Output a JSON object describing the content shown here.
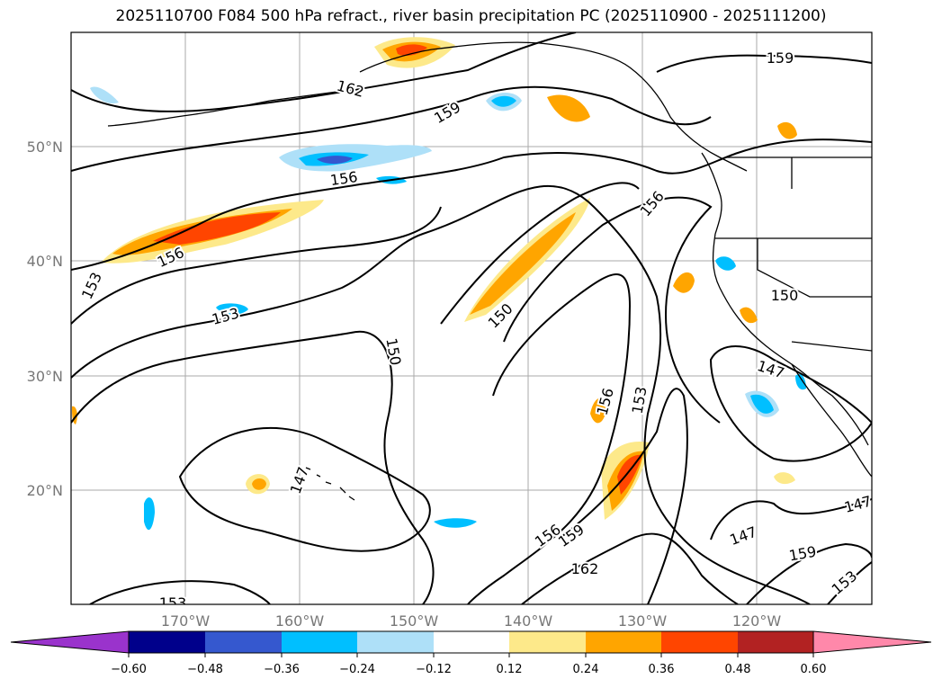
{
  "title": "2025110700 F084 500 hPa refract., river basin precipitation PC (2025110900 - 2025111200)",
  "map": {
    "lat_labels": [
      "50°N",
      "40°N",
      "30°N",
      "20°N"
    ],
    "lon_labels": [
      "170°W",
      "160°W",
      "150°W",
      "140°W",
      "130°W",
      "120°W"
    ],
    "contour_labels": [
      "162",
      "159",
      "159",
      "156",
      "156",
      "156",
      "153",
      "153",
      "150",
      "150",
      "150",
      "147",
      "147",
      "147",
      "156",
      "153",
      "156",
      "159",
      "162",
      "147",
      "159",
      "153",
      "153"
    ]
  },
  "colorbar": {
    "ticks": [
      "−0.60",
      "−0.48",
      "−0.36",
      "−0.24",
      "−0.12",
      "0.12",
      "0.24",
      "0.36",
      "0.48",
      "0.60"
    ],
    "colors": [
      "#9a33cc",
      "#00008b",
      "#3558cf",
      "#00bfff",
      "#aee0f8",
      "#ffffff",
      "#fde98a",
      "#ffa500",
      "#ff4500",
      "#b22222",
      "#ff88aa"
    ]
  }
}
